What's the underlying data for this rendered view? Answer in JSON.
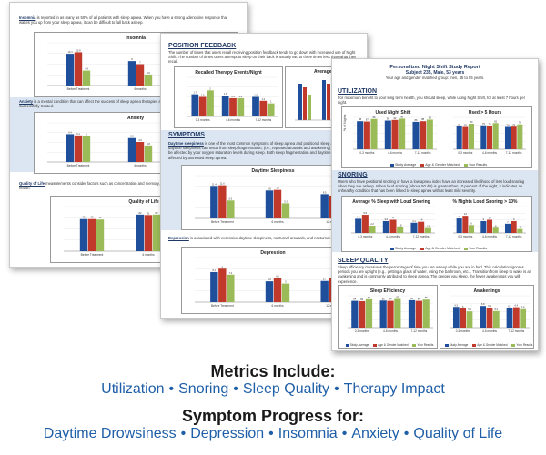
{
  "colors": {
    "study": "#1f4e9b",
    "matched": "#c0392b",
    "yours": "#9bbb59",
    "accent": "#1f5fa8",
    "band": "#dce6f2"
  },
  "legend": [
    "Study Average",
    "Age & Gender Matched",
    "Your Results"
  ],
  "sheet_a": {
    "insomnia_head": "Insomnia",
    "insomnia_text": "is reported in as many as 50% of all patients with sleep apnea. When you have a strong adenosine response that wakes you up from your sleep apnea, it can be difficult to fall back asleep.",
    "anxiety_head": "Anxiety",
    "anxiety_text": "is a mental condition that can affect the success of sleep apnea therapies and the quality of sleep once a patient is successfully treated.",
    "qol_head": "Quality of Life",
    "qol_text": "measurements consider factors such as concentration and memory, ability to be active, and moodiness on your health."
  },
  "sheet_b": {
    "position_head": "POSITION FEEDBACK",
    "position_text": "The number of times that users recall receiving position feedback tends to go down with increased use of Night Shift. The number of times users attempt to sleep on their back is usually two to three times less than what they recall.",
    "symptoms_head": "SYMPTOMS",
    "ds_head": "Daytime sleepiness",
    "ds_text": "is one of the most common symptoms of sleep apnea and positional sleep apnea. Excessive daytime sleepiness can result from sleep fragmentation, (i.e., repeated arousals and awakening) and you will likely be affected by your oxygen saturation levels during sleep. Both sleep fragmentation and daytime sleepiness are affected by untreated sleep apnea.",
    "dep_head": "Depression",
    "dep_text": "is associated with excessive daytime sleepiness, nocturnal arousals, and nocturnal anoxemia.",
    "chart1_title": "Recalled Therapy Events/Night",
    "chart2_title": "Average T"
  },
  "sheet_c": {
    "report_title": "Personalized Night Shift Study Report",
    "report_subject": "Subject 235, Male, 53 years",
    "report_group": "Your age and gender matched group: men, 45 to 55 years.",
    "util_head": "UTILIZATION",
    "util_text": "For maximum benefit to your long term health, you should sleep, while using Night Shift, for at least 7 hours per night.",
    "util_chart1": "Used Night Shift",
    "util_chart2": "Used > 5 Hours",
    "util_ylabel": "% of Nights",
    "snoring_head": "SNORING",
    "snoring_text": "Users who have positional snoring or have a low apnea index have an increased likelihood of less loud snoring when they are asleep. When loud snoring (above 50 dB) is greater than 10 percent of the night, it indicates an unhealthy condition that has been linked to sleep apnea with at least mild severity.",
    "snore_chart1": "Average % Sleep with Loud Snoring",
    "snore_chart2": "% Nights Loud Snoring > 10%",
    "sq_head": "SLEEP QUALITY",
    "sq_text": "Sleep efficiency measures the percentage of time you are asleep while you are in bed. This calculation ignores periods you are upright (e.g., getting a glass of water, using the bathroom, etc.). Transition from sleep to wake is an awakening and is commonly attributed to sleep apnea. The deeper you sleep, the fewer awakenings you will experience.",
    "sq_chart1": "Sleep Efficiency",
    "sq_chart2": "Awakenings",
    "sq_ylabel1": "% Time Asleep",
    "sq_ylabel2": "Count per Hour"
  },
  "caption": {
    "metrics_heading": "Metrics Include:",
    "metrics": [
      "Utilization",
      "Snoring",
      "Sleep Quality",
      "Therapy Impact"
    ],
    "progress_heading": "Symptom Progress for:",
    "progress": [
      "Daytime Drowsiness",
      "Depression",
      "Insomnia",
      "Anxiety",
      "Quality of Life"
    ]
  },
  "chart_data": [
    {
      "type": "bar",
      "title": "Insomnia",
      "categories": [
        "Before Treatment",
        "6 months",
        "12 months"
      ],
      "series": [
        {
          "name": "Study Average",
          "values": [
            10.4,
            8.0,
            7.6
          ]
        },
        {
          "name": "Age & Gender Matched",
          "values": [
            10.9,
            7.0,
            7.6
          ]
        },
        {
          "name": "Your Results",
          "values": [
            4.9,
            3.6,
            3.5
          ]
        }
      ],
      "ylim": [
        0,
        14
      ]
    },
    {
      "type": "bar",
      "title": "Anxiety",
      "categories": [
        "Before Treatment",
        "6 months",
        "12 months"
      ],
      "series": [
        {
          "name": "Study Average",
          "values": [
            6.4,
            5.5,
            3.5
          ]
        },
        {
          "name": "Age & Gender Matched",
          "values": [
            6.1,
            4.6,
            3.3
          ]
        },
        {
          "name": "Your Results",
          "values": [
            6.0,
            3.8,
            2.8
          ]
        }
      ],
      "ylim": [
        0,
        9
      ]
    },
    {
      "type": "bar",
      "title": "Quality of Life",
      "categories": [
        "Before Treatment",
        "6 months",
        "12 months"
      ],
      "series": [
        {
          "name": "Study Average",
          "values": [
            72,
            82,
            87
          ]
        },
        {
          "name": "Age & Gender Matched",
          "values": [
            72,
            81,
            79
          ]
        },
        {
          "name": "Your Results",
          "values": [
            71,
            82,
            87
          ]
        }
      ],
      "ylim": [
        0,
        100
      ]
    },
    {
      "type": "bar",
      "title": "Recalled Therapy Events/Night",
      "categories": [
        "0-3 months",
        "4-6 months",
        "7-12 months"
      ],
      "series": [
        {
          "name": "Study Average",
          "values": [
            1.7,
            1.6,
            1.5
          ]
        },
        {
          "name": "Age & Gender Matched",
          "values": [
            1.5,
            1.4,
            1.2
          ]
        },
        {
          "name": "Your Results",
          "values": [
            2.0,
            1.4,
            1.0
          ]
        }
      ],
      "ylim": [
        0,
        3
      ]
    },
    {
      "type": "bar",
      "title": "Daytime Sleepiness",
      "categories": [
        "Before Treatment",
        "6 months",
        "12 months"
      ],
      "series": [
        {
          "name": "Study Average",
          "values": [
            11.4,
            9.8,
            8.5
          ]
        },
        {
          "name": "Age & Gender Matched",
          "values": [
            11.6,
            10.0,
            8.0
          ]
        },
        {
          "name": "Your Results",
          "values": [
            6.3,
            5.3,
            4.2
          ]
        }
      ],
      "ylim": [
        0,
        15
      ]
    },
    {
      "type": "bar",
      "title": "Depression",
      "categories": [
        "Before Treatment",
        "6 months",
        "12 months"
      ],
      "series": [
        {
          "name": "Study Average",
          "values": [
            8.1,
            5.6,
            5.7
          ]
        },
        {
          "name": "Age & Gender Matched",
          "values": [
            9.0,
            6.5,
            6.5
          ]
        },
        {
          "name": "Your Results",
          "values": [
            7.4,
            5.0,
            5.3
          ]
        }
      ],
      "ylim": [
        0,
        12
      ]
    },
    {
      "type": "bar",
      "title": "Used Night Shift",
      "categories": [
        "0-3 months",
        "4-6 months",
        "7-12 months"
      ],
      "series": [
        {
          "name": "Study Average",
          "values": [
            88,
            90,
            86
          ]
        },
        {
          "name": "Age & Gender Matched",
          "values": [
            87,
            92,
            88
          ]
        },
        {
          "name": "Your Results",
          "values": [
            95,
            96,
            93
          ]
        }
      ],
      "ylim": [
        0,
        100
      ]
    },
    {
      "type": "bar",
      "title": "Used > 5 Hours",
      "categories": [
        "0-3 months",
        "4-6 months",
        "7-12 months"
      ],
      "series": [
        {
          "name": "Study Average",
          "values": [
            72,
            75,
            70
          ]
        },
        {
          "name": "Age & Gender Matched",
          "values": [
            70,
            74,
            71
          ]
        },
        {
          "name": "Your Results",
          "values": [
            80,
            82,
            78
          ]
        }
      ],
      "ylim": [
        0,
        100
      ]
    },
    {
      "type": "bar",
      "title": "Average % Sleep with Loud Snoring",
      "categories": [
        "0-3 months",
        "4-6 months",
        "7-12 months"
      ],
      "series": [
        {
          "name": "Study Average",
          "values": [
            4.3,
            3.6,
            3.1
          ]
        },
        {
          "name": "Age & Gender Matched",
          "values": [
            5.5,
            4.0,
            3.4
          ]
        },
        {
          "name": "Your Results",
          "values": [
            2.2,
            1.8,
            1.5
          ]
        }
      ],
      "ylim": [
        0,
        8
      ]
    },
    {
      "type": "bar",
      "title": "% Nights Loud Snoring > 10%",
      "categories": [
        "0-3 months",
        "4-6 months",
        "7-12 months"
      ],
      "series": [
        {
          "name": "Study Average",
          "values": [
            11,
            9,
            7
          ]
        },
        {
          "name": "Age & Gender Matched",
          "values": [
            13,
            10,
            9
          ]
        },
        {
          "name": "Your Results",
          "values": [
            6,
            4,
            3
          ]
        }
      ],
      "ylim": [
        0,
        20
      ]
    },
    {
      "type": "bar",
      "title": "Sleep Efficiency",
      "categories": [
        "0-3 months",
        "4-6 months",
        "7-12 months"
      ],
      "series": [
        {
          "name": "Study Average",
          "values": [
            84,
            85,
            86
          ]
        },
        {
          "name": "Age & Gender Matched",
          "values": [
            83,
            84,
            84
          ]
        },
        {
          "name": "Your Results",
          "values": [
            89,
            90,
            88
          ]
        }
      ],
      "ylim": [
        0,
        100
      ]
    },
    {
      "type": "bar",
      "title": "Awakenings",
      "categories": [
        "0-3 months",
        "4-6 months",
        "7-12 months"
      ],
      "series": [
        {
          "name": "Study Average",
          "values": [
            6.5,
            6.8,
            6.1
          ]
        },
        {
          "name": "Age & Gender Matched",
          "values": [
            6.0,
            6.3,
            6.4
          ]
        },
        {
          "name": "Your Results",
          "values": [
            5.1,
            5.2,
            5.8
          ]
        }
      ],
      "ylim": [
        0,
        10
      ]
    }
  ]
}
